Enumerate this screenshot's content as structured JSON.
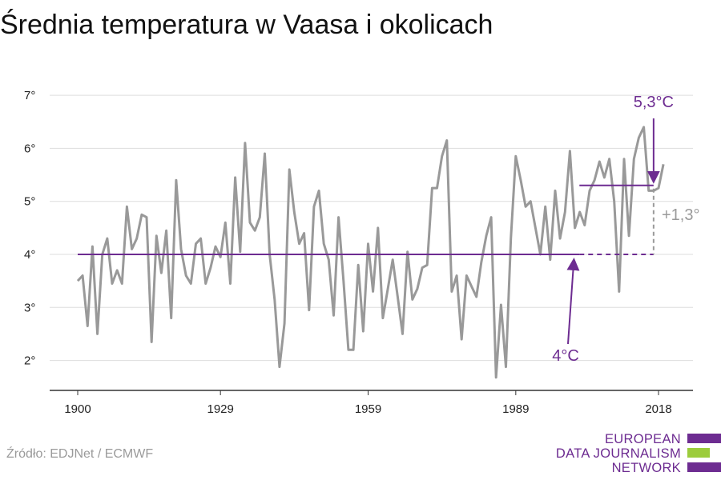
{
  "title": "Średnia temperatura w Vaasa i okolicach",
  "source": "Źródło: EDJNet / ECMWF",
  "logo": {
    "lines": [
      "EUROPEAN",
      "DATA JOURNALISM",
      "NETWORK"
    ],
    "colors": [
      "#6d2c91",
      "#9ccc3c",
      "#6d2c91"
    ]
  },
  "colors": {
    "series": "#999999",
    "accent": "#6d2c91",
    "diff": "#9a9a9a",
    "grid": "#dddddd",
    "axis": "#333333"
  },
  "chart_data": {
    "type": "line",
    "title": "Średnia temperatura w Vaasa i okolicach",
    "xlabel": "",
    "ylabel": "",
    "xlim": [
      1900,
      2019
    ],
    "ylim": [
      1.5,
      7.2
    ],
    "grid": true,
    "x_ticks": [
      1900,
      1929,
      1959,
      1989,
      2018
    ],
    "x_tick_labels": [
      "1900",
      "1929",
      "1959",
      "1989",
      "2018"
    ],
    "y_ticks": [
      2,
      3,
      4,
      5,
      6,
      7
    ],
    "y_tick_labels": [
      "2°",
      "3°",
      "4°",
      "5°",
      "6°",
      "7°"
    ],
    "series": [
      {
        "values_start_year": 1900,
        "x": [
          1900,
          1901,
          1902,
          1903,
          1904,
          1905,
          1906,
          1907,
          1908,
          1909,
          1910,
          1911,
          1912,
          1913,
          1914,
          1915,
          1916,
          1917,
          1918,
          1919,
          1920,
          1921,
          1922,
          1923,
          1924,
          1925,
          1926,
          1927,
          1928,
          1929,
          1930,
          1931,
          1932,
          1933,
          1934,
          1935,
          1936,
          1937,
          1938,
          1939,
          1940,
          1941,
          1942,
          1943,
          1944,
          1945,
          1946,
          1947,
          1948,
          1949,
          1950,
          1951,
          1952,
          1953,
          1954,
          1955,
          1956,
          1957,
          1958,
          1959,
          1960,
          1961,
          1962,
          1963,
          1964,
          1965,
          1966,
          1967,
          1968,
          1969,
          1970,
          1971,
          1972,
          1973,
          1974,
          1975,
          1976,
          1977,
          1978,
          1979,
          1980,
          1981,
          1982,
          1983,
          1984,
          1985,
          1986,
          1987,
          1988,
          1989,
          1990,
          1991,
          1992,
          1993,
          1994,
          1995,
          1996,
          1997,
          1998,
          1999,
          2000,
          2001,
          2002,
          2003,
          2004,
          2005,
          2006,
          2007,
          2008,
          2009,
          2010,
          2011,
          2012,
          2013,
          2014,
          2015,
          2016,
          2017,
          2018,
          2019
        ],
        "values": [
          3.5,
          3.6,
          2.65,
          4.15,
          2.5,
          4.0,
          4.3,
          3.45,
          3.7,
          3.45,
          4.9,
          4.1,
          4.3,
          4.75,
          4.7,
          2.35,
          4.35,
          3.65,
          4.45,
          2.8,
          5.4,
          4.1,
          3.6,
          3.45,
          4.2,
          4.3,
          3.45,
          3.75,
          4.15,
          3.95,
          4.6,
          3.45,
          5.45,
          4.05,
          6.1,
          4.6,
          4.45,
          4.7,
          5.9,
          4.0,
          3.15,
          1.88,
          2.7,
          5.6,
          4.8,
          4.2,
          4.4,
          2.95,
          4.9,
          5.2,
          4.2,
          3.9,
          2.85,
          4.7,
          3.5,
          2.2,
          2.2,
          3.8,
          2.55,
          4.2,
          3.3,
          4.5,
          2.8,
          3.35,
          3.9,
          3.2,
          2.5,
          4.05,
          3.15,
          3.35,
          3.75,
          3.8,
          5.25,
          5.25,
          5.85,
          6.15,
          3.3,
          3.6,
          2.4,
          3.6,
          3.4,
          3.2,
          3.85,
          4.35,
          4.7,
          1.68,
          3.05,
          1.88,
          4.3,
          5.85,
          5.4,
          4.9,
          5.0,
          4.5,
          4.0,
          4.9,
          3.9,
          5.2,
          4.3,
          4.8,
          5.95,
          4.5,
          4.8,
          4.55,
          5.2,
          5.4,
          5.75,
          5.45,
          5.8,
          5.0,
          3.3,
          5.8,
          4.35,
          5.8,
          6.2,
          6.4,
          5.2,
          5.2,
          5.25,
          5.7
        ]
      }
    ],
    "annotations": {
      "baseline": {
        "value": 4.0,
        "solid_range": [
          1900,
          1999
        ],
        "dashed_range": [
          1999,
          2017
        ],
        "label": "4°C"
      },
      "recent": {
        "value": 5.3,
        "range": [
          1999,
          2017
        ],
        "label": "5,3°C"
      },
      "difference": {
        "label": "+1,3°"
      }
    }
  }
}
